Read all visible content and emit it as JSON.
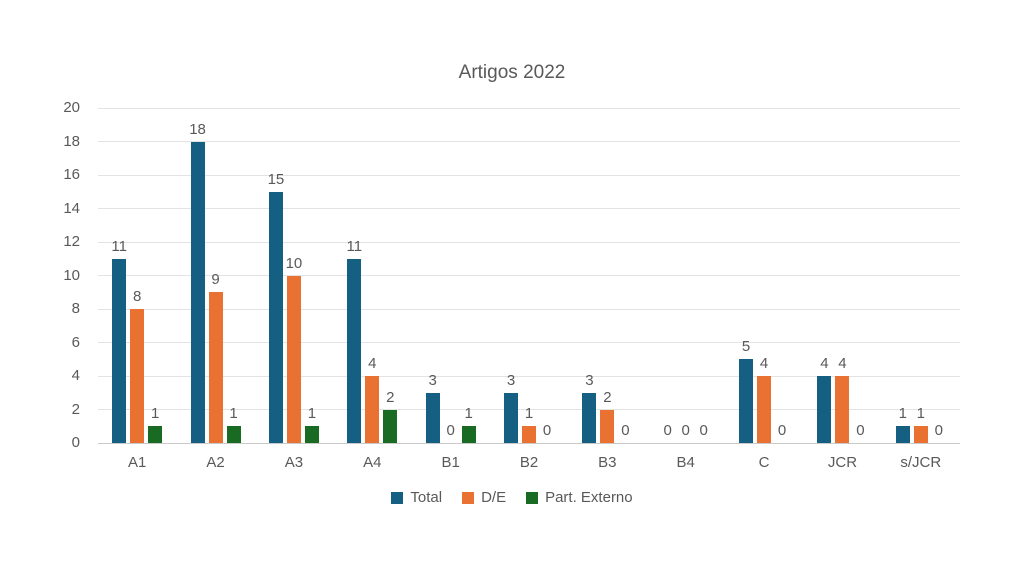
{
  "chart_data": {
    "type": "bar",
    "title": "Artigos 2022",
    "categories": [
      "A1",
      "A2",
      "A3",
      "A4",
      "B1",
      "B2",
      "B3",
      "B4",
      "C",
      "JCR",
      "s/JCR"
    ],
    "series": [
      {
        "name": "Total",
        "color": "#156082",
        "values": [
          11,
          18,
          15,
          11,
          3,
          3,
          3,
          0,
          5,
          4,
          1
        ]
      },
      {
        "name": "D/E",
        "color": "#E97132",
        "values": [
          8,
          9,
          10,
          4,
          0,
          1,
          2,
          0,
          4,
          4,
          1
        ]
      },
      {
        "name": "Part. Externo",
        "color": "#196B24",
        "values": [
          1,
          1,
          1,
          2,
          1,
          0,
          0,
          0,
          0,
          0,
          0
        ]
      }
    ],
    "ylim": [
      0,
      20
    ],
    "ytick_step": 2,
    "yticks": [
      0,
      2,
      4,
      6,
      8,
      10,
      12,
      14,
      16,
      18,
      20
    ],
    "grid": true,
    "data_labels": true,
    "legend_position": "bottom",
    "xlabel": "",
    "ylabel": ""
  },
  "style": {
    "text_color": "#595959",
    "gridline_color": "#e3e3e3",
    "axis_line_color": "#c9c9c9",
    "background": "#ffffff"
  }
}
